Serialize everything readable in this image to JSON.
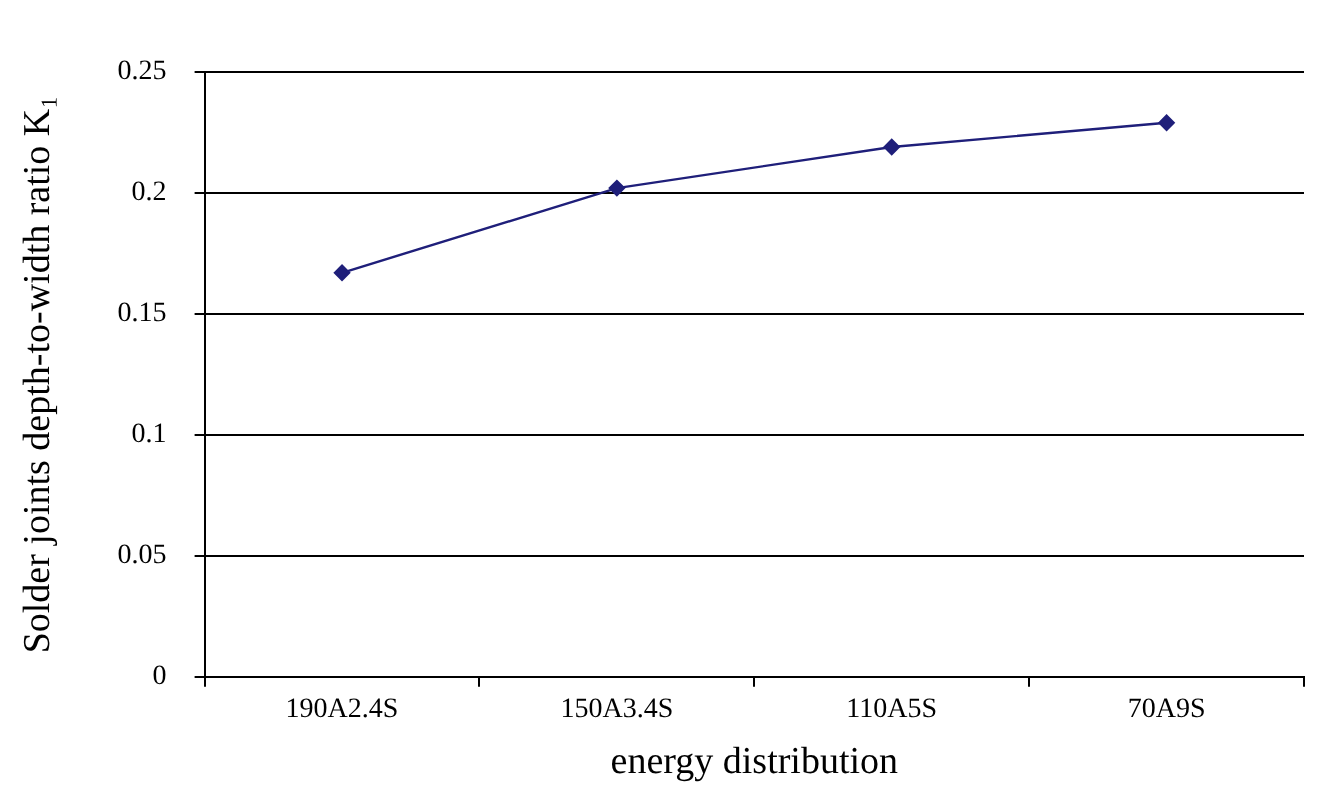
{
  "chart_data": {
    "type": "line",
    "xlabel": "energy distribution",
    "ylabel": "Solder joints depth-to-width ratio K₁",
    "categories": [
      "190A2.4S",
      "150A3.4S",
      "110A5S",
      "70A9S"
    ],
    "series": [
      {
        "color": "#1f1f7a",
        "values": [
          0.167,
          0.202,
          0.219,
          0.229
        ]
      }
    ],
    "ylim": [
      0,
      0.25
    ],
    "yticks": [
      0,
      0.05,
      0.1,
      0.15,
      0.2,
      0.25
    ],
    "grid": "y",
    "legend": false,
    "marker": "diamond",
    "line_style": "solid"
  }
}
